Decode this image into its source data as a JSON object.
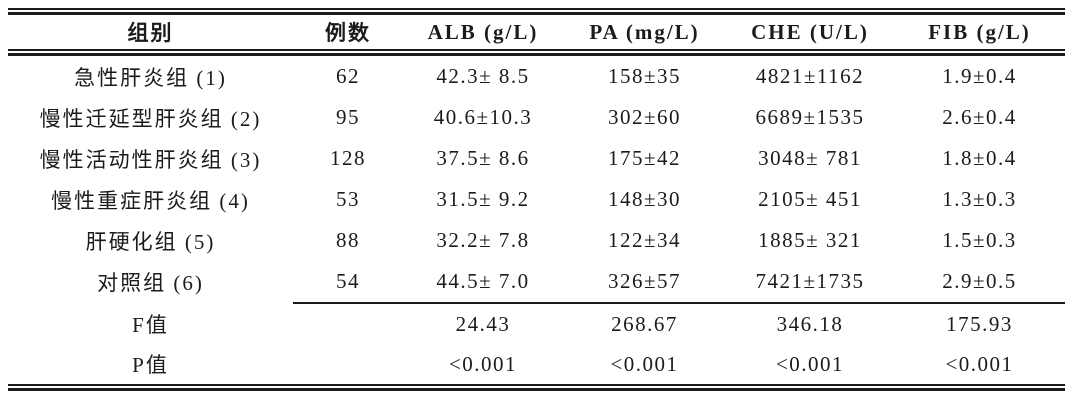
{
  "colors": {
    "background": "#ffffff",
    "text": "#1b1b1b",
    "rule": "#1b1b1b"
  },
  "table": {
    "columns": [
      {
        "label": "组别"
      },
      {
        "label": "例数"
      },
      {
        "label": "ALB (g/L)"
      },
      {
        "label": "PA (mg/L)"
      },
      {
        "label": "CHE (U/L)"
      },
      {
        "label": "FIB (g/L)"
      }
    ],
    "rows": [
      {
        "group": "急性肝炎组 (1)",
        "n": "62",
        "alb": "42.3± 8.5",
        "pa": "158±35",
        "che": "4821±1162",
        "fib": "1.9±0.4"
      },
      {
        "group": "慢性迁延型肝炎组 (2)",
        "n": "95",
        "alb": "40.6±10.3",
        "pa": "302±60",
        "che": "6689±1535",
        "fib": "2.6±0.4"
      },
      {
        "group": "慢性活动性肝炎组 (3)",
        "n": "128",
        "alb": "37.5± 8.6",
        "pa": "175±42",
        "che": "3048± 781",
        "fib": "1.8±0.4"
      },
      {
        "group": "慢性重症肝炎组 (4)",
        "n": "53",
        "alb": "31.5± 9.2",
        "pa": "148±30",
        "che": "2105± 451",
        "fib": "1.3±0.3"
      },
      {
        "group": "肝硬化组 (5)",
        "n": "88",
        "alb": "32.2± 7.8",
        "pa": "122±34",
        "che": "1885± 321",
        "fib": "1.5±0.3"
      },
      {
        "group": "对照组 (6)",
        "n": "54",
        "alb": "44.5± 7.0",
        "pa": "326±57",
        "che": "7421±1735",
        "fib": "2.9±0.5"
      }
    ],
    "stat_rows": [
      {
        "group": "F值",
        "n": "",
        "alb": "24.43",
        "pa": "268.67",
        "che": "346.18",
        "fib": "175.93"
      },
      {
        "group": "P值",
        "n": "",
        "alb": "<0.001",
        "pa": "<0.001",
        "che": "<0.001",
        "fib": "<0.001"
      }
    ]
  }
}
